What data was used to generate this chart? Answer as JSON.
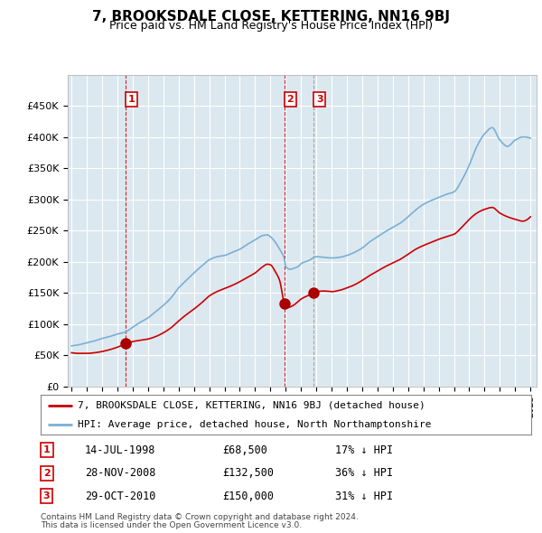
{
  "title": "7, BROOKSDALE CLOSE, KETTERING, NN16 9BJ",
  "subtitle": "Price paid vs. HM Land Registry's House Price Index (HPI)",
  "legend_line1": "7, BROOKSDALE CLOSE, KETTERING, NN16 9BJ (detached house)",
  "legend_line2": "HPI: Average price, detached house, North Northamptonshire",
  "footnote1": "Contains HM Land Registry data © Crown copyright and database right 2024.",
  "footnote2": "This data is licensed under the Open Government Licence v3.0.",
  "transactions": [
    {
      "num": "1",
      "date": "14-JUL-1998",
      "price": 68500,
      "pct": "17% ↓ HPI",
      "year": 1998.54,
      "vline_style": "red_dashed"
    },
    {
      "num": "2",
      "date": "28-NOV-2008",
      "price": 132500,
      "pct": "36% ↓ HPI",
      "year": 2008.91,
      "vline_style": "red_dashed"
    },
    {
      "num": "3",
      "date": "29-OCT-2010",
      "price": 150000,
      "pct": "31% ↓ HPI",
      "year": 2010.83,
      "vline_style": "grey_dashed"
    }
  ],
  "price_color": "#cc0000",
  "hpi_color": "#7aafd4",
  "vline_red": "#cc0000",
  "vline_grey": "#999999",
  "dot_color": "#aa0000",
  "plot_bg_color": "#dce8f0",
  "background_color": "#ffffff",
  "grid_color": "#ffffff",
  "ylim": [
    0,
    500000
  ],
  "yticks": [
    0,
    50000,
    100000,
    150000,
    200000,
    250000,
    300000,
    350000,
    400000,
    450000
  ],
  "xlim_start": 1994.75,
  "xlim_end": 2025.4
}
